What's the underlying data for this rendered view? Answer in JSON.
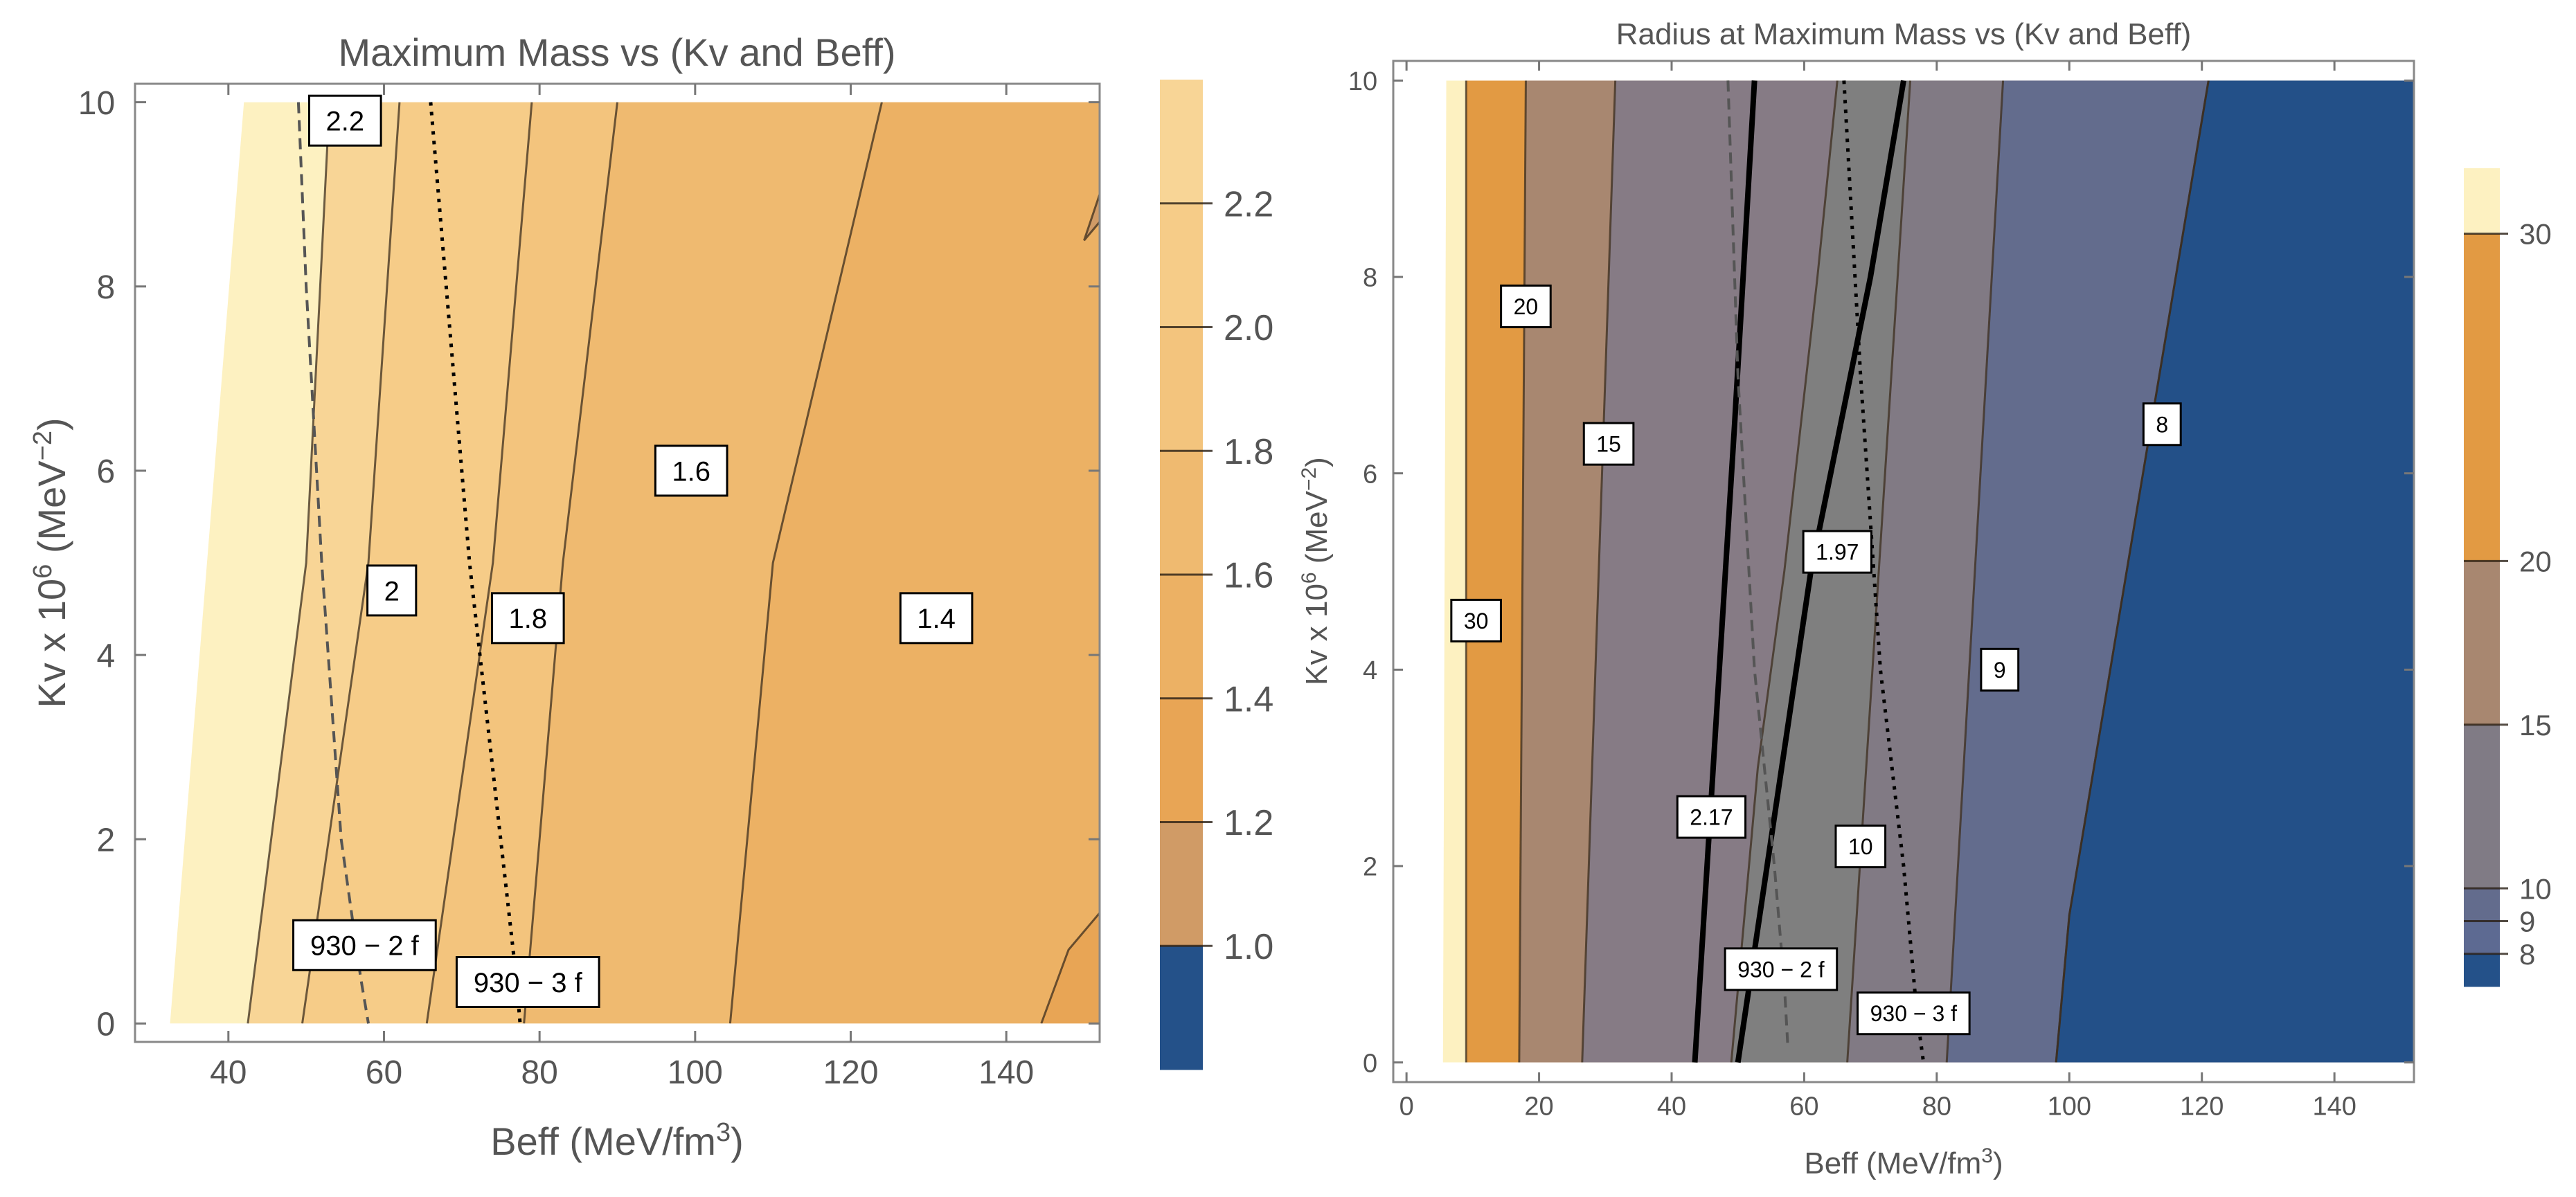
{
  "chart_data": [
    {
      "type": "contour",
      "title": "Maximum Mass vs (Kv and Beff)",
      "xlabel": {
        "main": "Beff (MeV/fm",
        "sup": "3",
        "tail": ")"
      },
      "ylabel": {
        "main": "Kv x 10",
        "sup": "6",
        "mid": " (MeV",
        "sup2": "−2",
        "tail": ")"
      },
      "xlim": [
        28,
        152
      ],
      "ylim": [
        -0.2,
        10.2
      ],
      "xticks": [
        40,
        60,
        80,
        100,
        120,
        140
      ],
      "yticks": [
        0,
        2,
        4,
        6,
        8,
        10
      ],
      "domain": {
        "ymax": 10,
        "left_edge": [
          [
            32.5,
            0
          ],
          [
            42,
            10
          ]
        ],
        "right_x": 152
      },
      "bands": [
        {
          "color": "#FDF1C1",
          "line": [
            [
              32.5,
              0
            ],
            [
              42,
              10
            ]
          ]
        },
        {
          "color": "#F8D596",
          "line": [
            [
              42.5,
              0
            ],
            [
              50,
              5
            ],
            [
              53,
              10
            ]
          ]
        },
        {
          "color": "#F6CC88",
          "line": [
            [
              49.5,
              0
            ],
            [
              58,
              5
            ],
            [
              62,
              10
            ]
          ]
        },
        {
          "color": "#F3C47D",
          "line": [
            [
              65.5,
              0
            ],
            [
              74,
              5
            ],
            [
              79,
              10
            ]
          ]
        },
        {
          "color": "#EFBA70",
          "line": [
            [
              78,
              0
            ],
            [
              83,
              5
            ],
            [
              90,
              10
            ]
          ]
        },
        {
          "color": "#ECB164",
          "line": [
            [
              104.5,
              0
            ],
            [
              110,
              5
            ],
            [
              124,
              10
            ]
          ]
        },
        {
          "color": "#E8A555",
          "line": [
            [
              144.5,
              0
            ],
            [
              148,
              0.8
            ],
            [
              152,
              1.2
            ]
          ]
        },
        {
          "color": "#D09B66",
          "line": [
            [
              152,
              8.7
            ],
            [
              150,
              8.5
            ],
            [
              152,
              9
            ]
          ]
        }
      ],
      "contour_labels": [
        {
          "text": "2.2",
          "x": 55,
          "y": 9.8
        },
        {
          "text": "2",
          "x": 61,
          "y": 4.7
        },
        {
          "text": "1.8",
          "x": 78.5,
          "y": 4.4
        },
        {
          "text": "1.6",
          "x": 99.5,
          "y": 6
        },
        {
          "text": "1.4",
          "x": 131,
          "y": 4.4
        },
        {
          "text": "930 − 2 f",
          "x": 57.5,
          "y": 0.85
        },
        {
          "text": "930 − 3 f",
          "x": 78.5,
          "y": 0.45
        }
      ],
      "overlay_curves": [
        {
          "name": "930 − 2 f",
          "style": "dashed",
          "points": [
            [
              49,
              10
            ],
            [
              50,
              8
            ],
            [
              52,
              5
            ],
            [
              54.5,
              2
            ],
            [
              57,
              0.5
            ],
            [
              58,
              0
            ]
          ]
        },
        {
          "name": "930 − 3 f",
          "style": "dotted",
          "points": [
            [
              66,
              10
            ],
            [
              68,
              8
            ],
            [
              71,
              5
            ],
            [
              75,
              2
            ],
            [
              77,
              0.5
            ],
            [
              77.5,
              0
            ]
          ]
        }
      ],
      "legend": {
        "position": "right",
        "colors": [
          "#245189",
          "#D09B66",
          "#E8A555",
          "#ECB164",
          "#EFBA70",
          "#F3C47D",
          "#F6CC88",
          "#F8D596",
          "#FDF1C1"
        ],
        "boundaries": [
          1.0,
          1.2,
          1.4,
          1.6,
          1.8,
          2.0,
          2.2
        ],
        "tick_labels": [
          "1.0",
          "1.2",
          "1.4",
          "1.6",
          "1.8",
          "2.0",
          "2.2"
        ],
        "range": [
          0.8,
          2.4
        ]
      }
    },
    {
      "type": "contour",
      "title": "Radius at Maximum Mass vs (Kv and Beff)",
      "xlabel": {
        "main": "Beff (MeV/fm",
        "sup": "3",
        "tail": ")"
      },
      "ylabel": {
        "main": "Kv x 10",
        "sup": "6",
        "mid": " (MeV",
        "sup2": "−2",
        "tail": ")"
      },
      "xlim": [
        -2,
        152
      ],
      "ylim": [
        -0.2,
        10.2
      ],
      "xticks": [
        0,
        20,
        40,
        60,
        80,
        100,
        120,
        140
      ],
      "yticks": [
        0,
        2,
        4,
        6,
        8,
        10
      ],
      "domain": {
        "ymax": 10,
        "left_edge": [
          [
            5.5,
            0
          ],
          [
            6,
            10
          ]
        ],
        "right_x": 152
      },
      "bands": [
        {
          "color": "#FDF1C1",
          "line": [
            [
              5.5,
              0
            ],
            [
              6,
              10
            ]
          ]
        },
        {
          "color": "#E29A43",
          "line": [
            [
              9,
              0
            ],
            [
              9,
              10
            ]
          ]
        },
        {
          "color": "#A88770",
          "line": [
            [
              17,
              0
            ],
            [
              18,
              10
            ]
          ]
        },
        {
          "color": "#867B85",
          "line": [
            [
              26.5,
              0
            ],
            [
              31.5,
              10
            ]
          ]
        },
        {
          "color": "#7F7F7F",
          "line": [
            [
              49,
              0
            ],
            [
              53,
              3
            ],
            [
              57,
              5
            ],
            [
              62,
              8
            ],
            [
              65,
              10
            ]
          ]
        },
        {
          "color": "#817A84",
          "line": [
            [
              66.5,
              0
            ],
            [
              76,
              10
            ]
          ]
        },
        {
          "color": "#636C8D",
          "line": [
            [
              81.5,
              0
            ],
            [
              90,
              10
            ]
          ]
        },
        {
          "color": "#5A6893",
          "line": [
            [
              98,
              0
            ],
            [
              100,
              1.5
            ],
            [
              121,
              10
            ]
          ]
        },
        {
          "color": "#235088",
          "line": [
            [
              98,
              0
            ],
            [
              100,
              1.5
            ],
            [
              121,
              10
            ]
          ]
        }
      ],
      "thick_lines": [
        {
          "name": "2.17",
          "points": [
            [
              43.5,
              0
            ],
            [
              49.5,
              6.5
            ],
            [
              52.5,
              10
            ]
          ]
        },
        {
          "name": "1.97",
          "points": [
            [
              50,
              0
            ],
            [
              61,
              5
            ],
            [
              70,
              8
            ],
            [
              75,
              10
            ]
          ]
        }
      ],
      "contour_labels": [
        {
          "text": "20",
          "x": 18,
          "y": 7.7
        },
        {
          "text": "15",
          "x": 30.5,
          "y": 6.3
        },
        {
          "text": "30",
          "x": 10.5,
          "y": 4.5
        },
        {
          "text": "1.97",
          "x": 65,
          "y": 5.2
        },
        {
          "text": "2.17",
          "x": 46,
          "y": 2.5
        },
        {
          "text": "9",
          "x": 89.5,
          "y": 4
        },
        {
          "text": "8",
          "x": 114,
          "y": 6.5
        },
        {
          "text": "10",
          "x": 68.5,
          "y": 2.2
        },
        {
          "text": "930 − 2 f",
          "x": 56.5,
          "y": 0.95
        },
        {
          "text": "930 − 3 f",
          "x": 76.5,
          "y": 0.5
        }
      ],
      "overlay_curves": [
        {
          "name": "930 − 2 f",
          "style": "dashed",
          "points": [
            [
              48.5,
              10
            ],
            [
              50,
              7
            ],
            [
              52.5,
              4
            ],
            [
              55.5,
              2
            ],
            [
              57,
              0.8
            ],
            [
              57.5,
              0.2
            ]
          ]
        },
        {
          "name": "930 − 3 f",
          "style": "dotted",
          "points": [
            [
              66,
              10
            ],
            [
              68.5,
              7
            ],
            [
              71.5,
              4
            ],
            [
              75,
              2
            ],
            [
              77,
              0.5
            ],
            [
              78,
              0
            ]
          ]
        }
      ],
      "legend": {
        "position": "right",
        "colors": [
          "#245189",
          "#5D6A92",
          "#636C8D",
          "#807B85",
          "#A88770",
          "#E29A43",
          "#FDF1C1"
        ],
        "boundaries": [
          8,
          9,
          10,
          15,
          20,
          30
        ],
        "tick_labels": [
          "8",
          "9",
          "10",
          "15",
          "20",
          "30"
        ],
        "range": [
          7,
          32
        ]
      }
    }
  ]
}
